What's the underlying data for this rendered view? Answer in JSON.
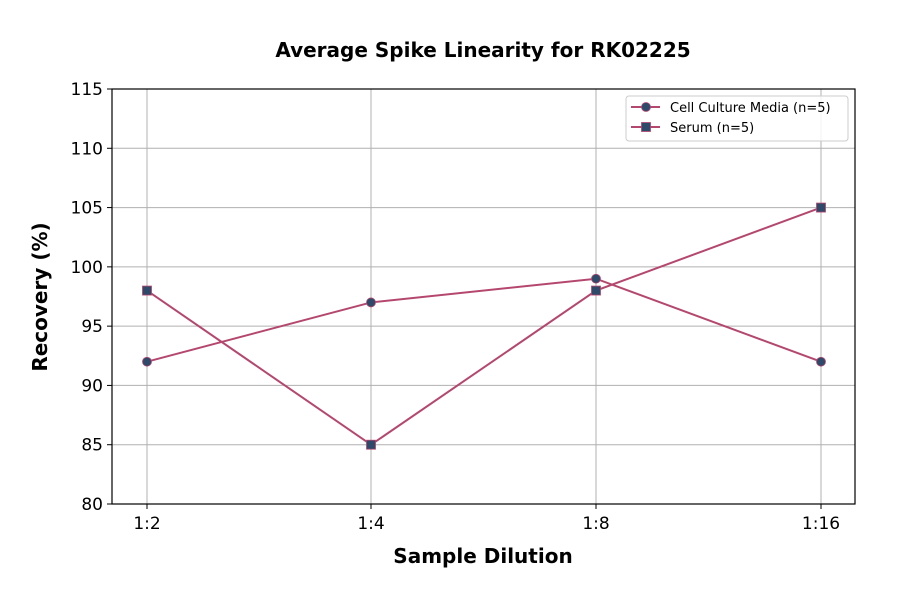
{
  "chart_data": {
    "type": "line",
    "title": "Average Spike Linearity for RK02225",
    "xlabel": "Sample Dilution",
    "ylabel": "Recovery (%)",
    "categories": [
      "1:2",
      "1:4",
      "1:8",
      "1:16"
    ],
    "ylim": [
      80,
      115
    ],
    "yticks": [
      80,
      85,
      90,
      95,
      100,
      105,
      110,
      115
    ],
    "grid": true,
    "legend_placement": "top-right",
    "series": [
      {
        "name": "Cell Culture Media (n=5)",
        "values": [
          92,
          97,
          99,
          92
        ],
        "marker": "circle",
        "line_color": "#b5476e",
        "marker_color": "#2e4a6b"
      },
      {
        "name": "Serum (n=5)",
        "values": [
          98,
          85,
          98,
          105
        ],
        "marker": "square",
        "line_color": "#b5476e",
        "marker_color": "#2e4a6b"
      }
    ]
  }
}
